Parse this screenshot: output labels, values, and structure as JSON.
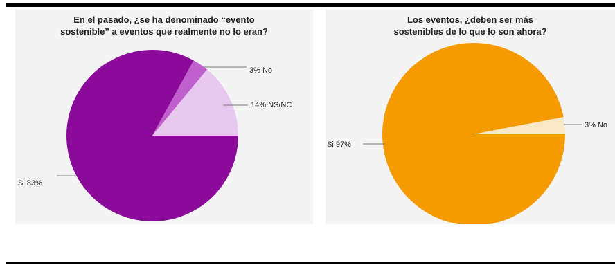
{
  "chart_data": [
    {
      "type": "pie",
      "title": "En el pasado, ¿se ha denominado “evento\nsostenible” a eventos que realmente no lo eran?",
      "slices": [
        {
          "category": "Si",
          "value": 83,
          "label": "Si  83%",
          "color": "#8b0a9a"
        },
        {
          "category": "No",
          "value": 3,
          "label": "3%  No",
          "color": "#c060cc"
        },
        {
          "category": "NS/NC",
          "value": 14,
          "label": "14%  NS/NC",
          "color": "#e8c8ee"
        }
      ]
    },
    {
      "type": "pie",
      "title": "Los eventos, ¿deben ser más\nsostenibles de lo que lo son ahora?",
      "slices": [
        {
          "category": "Si",
          "value": 97,
          "label": "Si  97%",
          "color": "#f59a00"
        },
        {
          "category": "No",
          "value": 3,
          "label": "3%  No",
          "color": "#f7e8c8"
        }
      ]
    }
  ]
}
